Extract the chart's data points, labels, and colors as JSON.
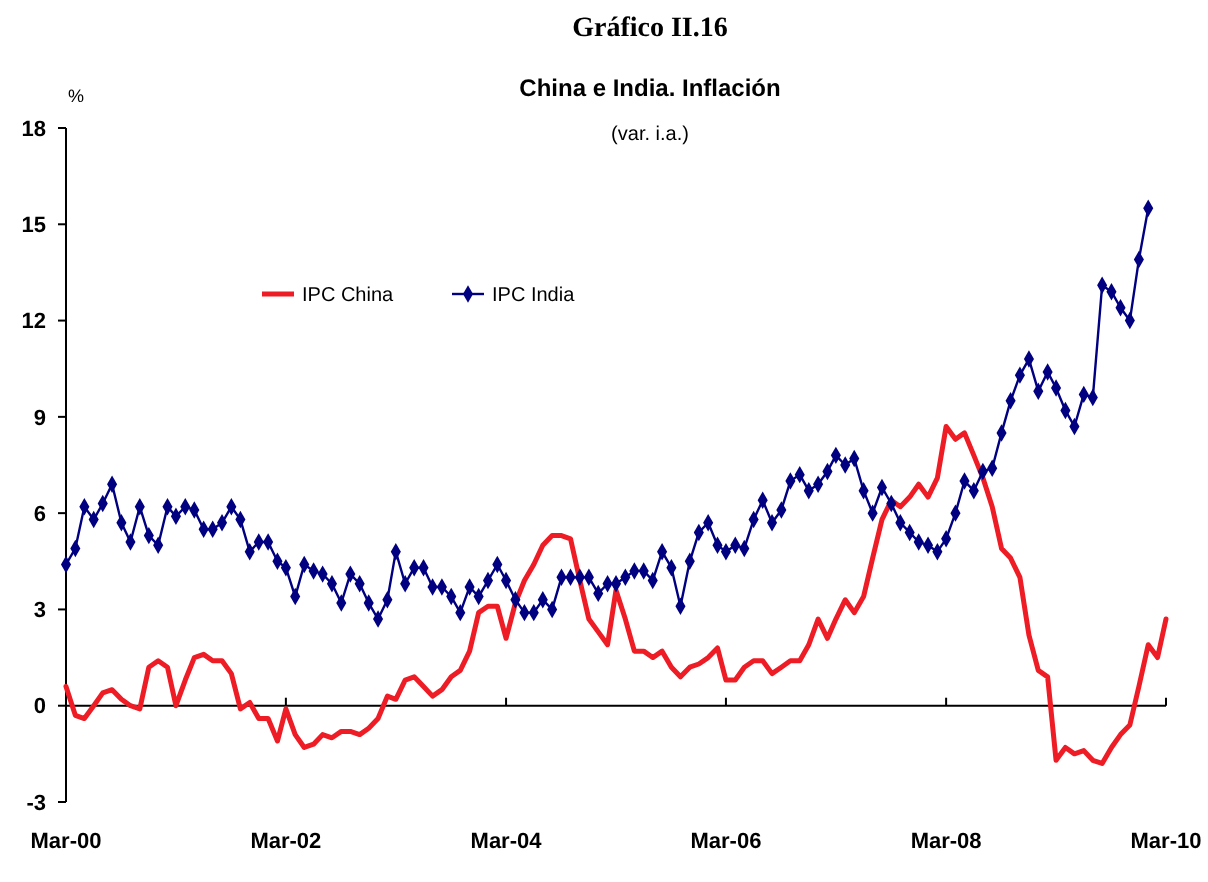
{
  "chart_data": {
    "type": "line",
    "title": "Gráfico II.16",
    "subtitle": "China e India. Inflación",
    "annotations": [
      "(var. i.a.)"
    ],
    "ylabel": "%",
    "x": [
      "2000-03",
      "2000-04",
      "2000-05",
      "2000-06",
      "2000-07",
      "2000-08",
      "2000-09",
      "2000-10",
      "2000-11",
      "2000-12",
      "2001-01",
      "2001-02",
      "2001-03",
      "2001-04",
      "2001-05",
      "2001-06",
      "2001-07",
      "2001-08",
      "2001-09",
      "2001-10",
      "2001-11",
      "2001-12",
      "2002-01",
      "2002-02",
      "2002-03",
      "2002-04",
      "2002-05",
      "2002-06",
      "2002-07",
      "2002-08",
      "2002-09",
      "2002-10",
      "2002-11",
      "2002-12",
      "2003-01",
      "2003-02",
      "2003-03",
      "2003-04",
      "2003-05",
      "2003-06",
      "2003-07",
      "2003-08",
      "2003-09",
      "2003-10",
      "2003-11",
      "2003-12",
      "2004-01",
      "2004-02",
      "2004-03",
      "2004-04",
      "2004-05",
      "2004-06",
      "2004-07",
      "2004-08",
      "2004-09",
      "2004-10",
      "2004-11",
      "2004-12",
      "2005-01",
      "2005-02",
      "2005-03",
      "2005-04",
      "2005-05",
      "2005-06",
      "2005-07",
      "2005-08",
      "2005-09",
      "2005-10",
      "2005-11",
      "2005-12",
      "2006-01",
      "2006-02",
      "2006-03",
      "2006-04",
      "2006-05",
      "2006-06",
      "2006-07",
      "2006-08",
      "2006-09",
      "2006-10",
      "2006-11",
      "2006-12",
      "2007-01",
      "2007-02",
      "2007-03",
      "2007-04",
      "2007-05",
      "2007-06",
      "2007-07",
      "2007-08",
      "2007-09",
      "2007-10",
      "2007-11",
      "2007-12",
      "2008-01",
      "2008-02",
      "2008-03",
      "2008-04",
      "2008-05",
      "2008-06",
      "2008-07",
      "2008-08",
      "2008-09",
      "2008-10",
      "2008-11",
      "2008-12",
      "2009-01",
      "2009-02",
      "2009-03",
      "2009-04",
      "2009-05",
      "2009-06",
      "2009-07",
      "2009-08",
      "2009-09",
      "2009-10",
      "2009-11",
      "2009-12",
      "2010-01",
      "2010-02",
      "2010-03"
    ],
    "series": [
      {
        "name": "IPC China",
        "color": "#ee1c25",
        "marker": "none",
        "values": [
          0.6,
          -0.3,
          -0.4,
          0.0,
          0.4,
          0.5,
          0.2,
          0.0,
          -0.1,
          1.2,
          1.4,
          1.2,
          0.0,
          0.8,
          1.5,
          1.6,
          1.4,
          1.4,
          1.0,
          -0.1,
          0.1,
          -0.4,
          -0.4,
          -1.1,
          -0.1,
          -0.9,
          -1.3,
          -1.2,
          -0.9,
          -1.0,
          -0.8,
          -0.8,
          -0.9,
          -0.7,
          -0.4,
          0.3,
          0.2,
          0.8,
          0.9,
          0.6,
          0.3,
          0.5,
          0.9,
          1.1,
          1.7,
          2.9,
          3.1,
          3.1,
          2.1,
          3.2,
          3.9,
          4.4,
          5.0,
          5.3,
          5.3,
          5.2,
          3.9,
          2.7,
          2.3,
          1.9,
          3.6,
          2.7,
          1.7,
          1.7,
          1.5,
          1.7,
          1.2,
          0.9,
          1.2,
          1.3,
          1.5,
          1.8,
          0.8,
          0.8,
          1.2,
          1.4,
          1.4,
          1.0,
          1.2,
          1.4,
          1.4,
          1.9,
          2.7,
          2.1,
          2.7,
          3.3,
          2.9,
          3.4,
          4.6,
          5.8,
          6.4,
          6.2,
          6.5,
          6.9,
          6.5,
          7.1,
          8.7,
          8.3,
          8.5,
          7.8,
          7.1,
          6.2,
          4.9,
          4.6,
          4.0,
          2.2,
          1.1,
          0.9,
          -1.7,
          -1.3,
          -1.5,
          -1.4,
          -1.7,
          -1.8,
          -1.3,
          -0.9,
          -0.6,
          0.6,
          1.9,
          1.5,
          2.7
        ]
      },
      {
        "name": "IPC India",
        "color": "#000080",
        "marker": "diamond",
        "values": [
          4.4,
          4.9,
          6.2,
          5.8,
          6.3,
          6.9,
          5.7,
          5.1,
          6.2,
          5.3,
          5.0,
          6.2,
          5.9,
          6.2,
          6.1,
          5.5,
          5.5,
          5.7,
          6.2,
          5.8,
          4.8,
          5.1,
          5.1,
          4.5,
          4.3,
          3.4,
          4.4,
          4.2,
          4.1,
          3.8,
          3.2,
          4.1,
          3.8,
          3.2,
          2.7,
          3.3,
          4.8,
          3.8,
          4.3,
          4.3,
          3.7,
          3.7,
          3.4,
          2.9,
          3.7,
          3.4,
          3.9,
          4.4,
          3.9,
          3.3,
          2.9,
          2.9,
          3.3,
          3.0,
          4.0,
          4.0,
          4.0,
          4.0,
          3.5,
          3.8,
          3.8,
          4.0,
          4.2,
          4.2,
          3.9,
          4.8,
          4.3,
          3.1,
          4.5,
          5.4,
          5.7,
          5.0,
          4.8,
          5.0,
          4.9,
          5.8,
          6.4,
          5.7,
          6.1,
          7.0,
          7.2,
          6.7,
          6.9,
          7.3,
          7.8,
          7.5,
          7.7,
          6.7,
          6.0,
          6.8,
          6.3,
          5.7,
          5.4,
          5.1,
          5.0,
          4.8,
          5.2,
          6.0,
          7.0,
          6.7,
          7.3,
          7.4,
          8.5,
          9.5,
          10.3,
          10.8,
          9.8,
          10.4,
          9.9,
          9.2,
          8.7,
          9.7,
          9.6,
          13.1,
          12.9,
          12.4,
          12.0,
          13.9,
          15.5,
          null,
          null
        ]
      }
    ],
    "xlim": [
      "2000-03",
      "2010-03"
    ],
    "xticks": [
      {
        "value": "2000-03",
        "label": "Mar-00"
      },
      {
        "value": "2002-03",
        "label": "Mar-02"
      },
      {
        "value": "2004-03",
        "label": "Mar-04"
      },
      {
        "value": "2006-03",
        "label": "Mar-06"
      },
      {
        "value": "2008-03",
        "label": "Mar-08"
      },
      {
        "value": "2010-03",
        "label": "Mar-10"
      }
    ],
    "ylim": [
      -3,
      18
    ],
    "yticks": [
      -3,
      0,
      3,
      6,
      9,
      12,
      15,
      18
    ],
    "legend": "top left"
  }
}
